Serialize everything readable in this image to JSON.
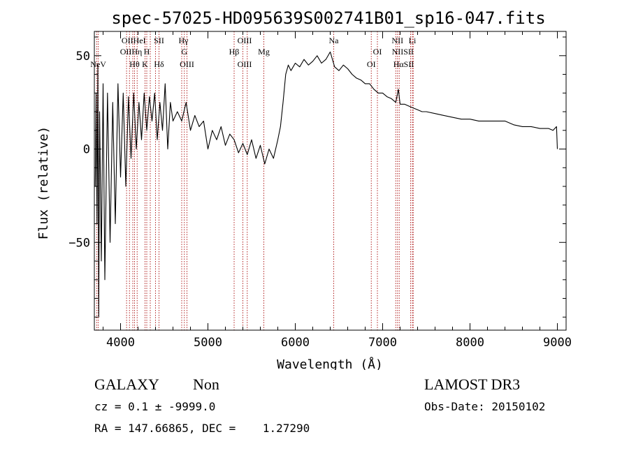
{
  "chart_data": {
    "type": "line",
    "title": "spec-57025-HD095639S002741B01_sp16-047.fits",
    "xlabel": "Wavelength (Å)",
    "ylabel": "Flux (relative)",
    "xlim": [
      3700,
      9100
    ],
    "ylim": [
      -97,
      63
    ],
    "x_ticks": [
      4000,
      5000,
      6000,
      7000,
      8000,
      9000
    ],
    "x_tick_labels": [
      "4000",
      "5000",
      "6000",
      "7000",
      "8000",
      "9000"
    ],
    "y_ticks": [
      -50,
      0,
      50
    ],
    "y_tick_labels": [
      "−50",
      "0",
      "50"
    ],
    "line_color": "#000000",
    "marker_color": "#b22222",
    "series": [
      {
        "name": "flux",
        "x": [
          3710,
          3720,
          3730,
          3740,
          3750,
          3760,
          3780,
          3800,
          3820,
          3850,
          3880,
          3910,
          3940,
          3970,
          4000,
          4030,
          4060,
          4090,
          4120,
          4150,
          4180,
          4210,
          4240,
          4270,
          4300,
          4330,
          4360,
          4390,
          4420,
          4450,
          4480,
          4510,
          4540,
          4570,
          4600,
          4650,
          4700,
          4750,
          4800,
          4850,
          4900,
          4950,
          5000,
          5050,
          5100,
          5150,
          5200,
          5250,
          5300,
          5350,
          5400,
          5450,
          5500,
          5550,
          5600,
          5650,
          5700,
          5750,
          5800,
          5830,
          5860,
          5890,
          5920,
          5950,
          6000,
          6050,
          6100,
          6150,
          6200,
          6250,
          6300,
          6350,
          6400,
          6450,
          6500,
          6550,
          6600,
          6650,
          6700,
          6750,
          6800,
          6850,
          6900,
          6950,
          7000,
          7050,
          7100,
          7150,
          7180,
          7200,
          7250,
          7300,
          7350,
          7400,
          7450,
          7500,
          7600,
          7700,
          7800,
          7900,
          8000,
          8100,
          8200,
          8300,
          8400,
          8500,
          8600,
          8700,
          8800,
          8900,
          8950,
          8990,
          9000
        ],
        "values": [
          -20,
          30,
          -40,
          45,
          -90,
          20,
          -60,
          35,
          -70,
          30,
          -50,
          25,
          -40,
          35,
          -15,
          30,
          -20,
          28,
          -5,
          30,
          0,
          25,
          5,
          30,
          10,
          28,
          15,
          30,
          5,
          25,
          10,
          35,
          0,
          25,
          15,
          20,
          15,
          25,
          10,
          18,
          12,
          15,
          0,
          10,
          5,
          12,
          2,
          8,
          5,
          -2,
          3,
          -3,
          5,
          -5,
          2,
          -8,
          0,
          -5,
          5,
          12,
          25,
          40,
          45,
          42,
          46,
          44,
          48,
          45,
          47,
          50,
          46,
          48,
          52,
          44,
          42,
          45,
          43,
          40,
          38,
          37,
          35,
          35,
          32,
          30,
          30,
          28,
          27,
          25,
          32,
          24,
          24,
          23,
          22,
          21,
          20,
          20,
          19,
          18,
          17,
          16,
          16,
          15,
          15,
          15,
          15,
          13,
          12,
          12,
          11,
          11,
          10,
          12,
          0
        ]
      }
    ],
    "line_markers": [
      {
        "wavelength": 3727,
        "label": "OII"
      },
      {
        "wavelength": 3745,
        "label": "NeV"
      },
      {
        "wavelength": 4069,
        "label": "OIII"
      },
      {
        "wavelength": 4102,
        "label": "Hδ"
      },
      {
        "wavelength": 4140,
        "label": "HeI"
      },
      {
        "wavelength": 4160,
        "label": "Hη"
      },
      {
        "wavelength": 4190,
        "label": "Hθ"
      },
      {
        "wavelength": 4280,
        "label": "K"
      },
      {
        "wavelength": 4300,
        "label": "H"
      },
      {
        "wavelength": 4340,
        "label": "SII"
      },
      {
        "wavelength": 4400,
        "label": "Hδ"
      },
      {
        "wavelength": 4440,
        "label": "SII"
      },
      {
        "wavelength": 4700,
        "label": "Hγ"
      },
      {
        "wavelength": 4730,
        "label": "G"
      },
      {
        "wavelength": 4760,
        "label": "OIII"
      },
      {
        "wavelength": 5300,
        "label": "Hβ"
      },
      {
        "wavelength": 5400,
        "label": "OIII"
      },
      {
        "wavelength": 5450,
        "label": "OIII"
      },
      {
        "wavelength": 5640,
        "label": "Mg"
      },
      {
        "wavelength": 6440,
        "label": "Na"
      },
      {
        "wavelength": 6870,
        "label": "OI"
      },
      {
        "wavelength": 6940,
        "label": "OI"
      },
      {
        "wavelength": 7150,
        "label": "NII"
      },
      {
        "wavelength": 7170,
        "label": "Hα"
      },
      {
        "wavelength": 7190,
        "label": "NII"
      },
      {
        "wavelength": 7320,
        "label": "SII"
      },
      {
        "wavelength": 7340,
        "label": "Li"
      },
      {
        "wavelength": 7350,
        "label": "SII"
      }
    ],
    "marker_label_rows": [
      {
        "text": "OIIHeI",
        "wavelength": 4150,
        "row": 0
      },
      {
        "text": "SII",
        "wavelength": 4440,
        "row": 0
      },
      {
        "text": "Hγ",
        "wavelength": 4720,
        "row": 0
      },
      {
        "text": "OIII",
        "wavelength": 5420,
        "row": 0
      },
      {
        "text": "Na",
        "wavelength": 6440,
        "row": 0
      },
      {
        "text": "NII",
        "wavelength": 7170,
        "row": 0
      },
      {
        "text": "Li",
        "wavelength": 7340,
        "row": 0
      },
      {
        "text": "OIIHη",
        "wavelength": 4120,
        "row": 1
      },
      {
        "text": "H",
        "wavelength": 4300,
        "row": 1
      },
      {
        "text": "G",
        "wavelength": 4730,
        "row": 1
      },
      {
        "text": "Hβ",
        "wavelength": 5300,
        "row": 1
      },
      {
        "text": "Mg",
        "wavelength": 5640,
        "row": 1
      },
      {
        "text": "OI",
        "wavelength": 6940,
        "row": 1
      },
      {
        "text": "NIISII",
        "wavelength": 7230,
        "row": 1
      },
      {
        "text": "NeV",
        "wavelength": 3745,
        "row": 2
      },
      {
        "text": "Hθ",
        "wavelength": 4160,
        "row": 2
      },
      {
        "text": "K",
        "wavelength": 4280,
        "row": 2
      },
      {
        "text": "Hδ",
        "wavelength": 4440,
        "row": 2
      },
      {
        "text": "OIII",
        "wavelength": 4760,
        "row": 2
      },
      {
        "text": "OIII",
        "wavelength": 5420,
        "row": 2
      },
      {
        "text": "OI",
        "wavelength": 6870,
        "row": 2
      },
      {
        "text": "HαSII",
        "wavelength": 7240,
        "row": 2
      }
    ]
  },
  "footer": {
    "object_class": "GALAXY",
    "subclass": "Non",
    "survey": "LAMOST DR3",
    "redshift": "cz = 0.1 ± -9999.0",
    "obs_date": "Obs-Date: 20150102",
    "coords": "RA = 147.66865, DEC =    1.27290"
  }
}
